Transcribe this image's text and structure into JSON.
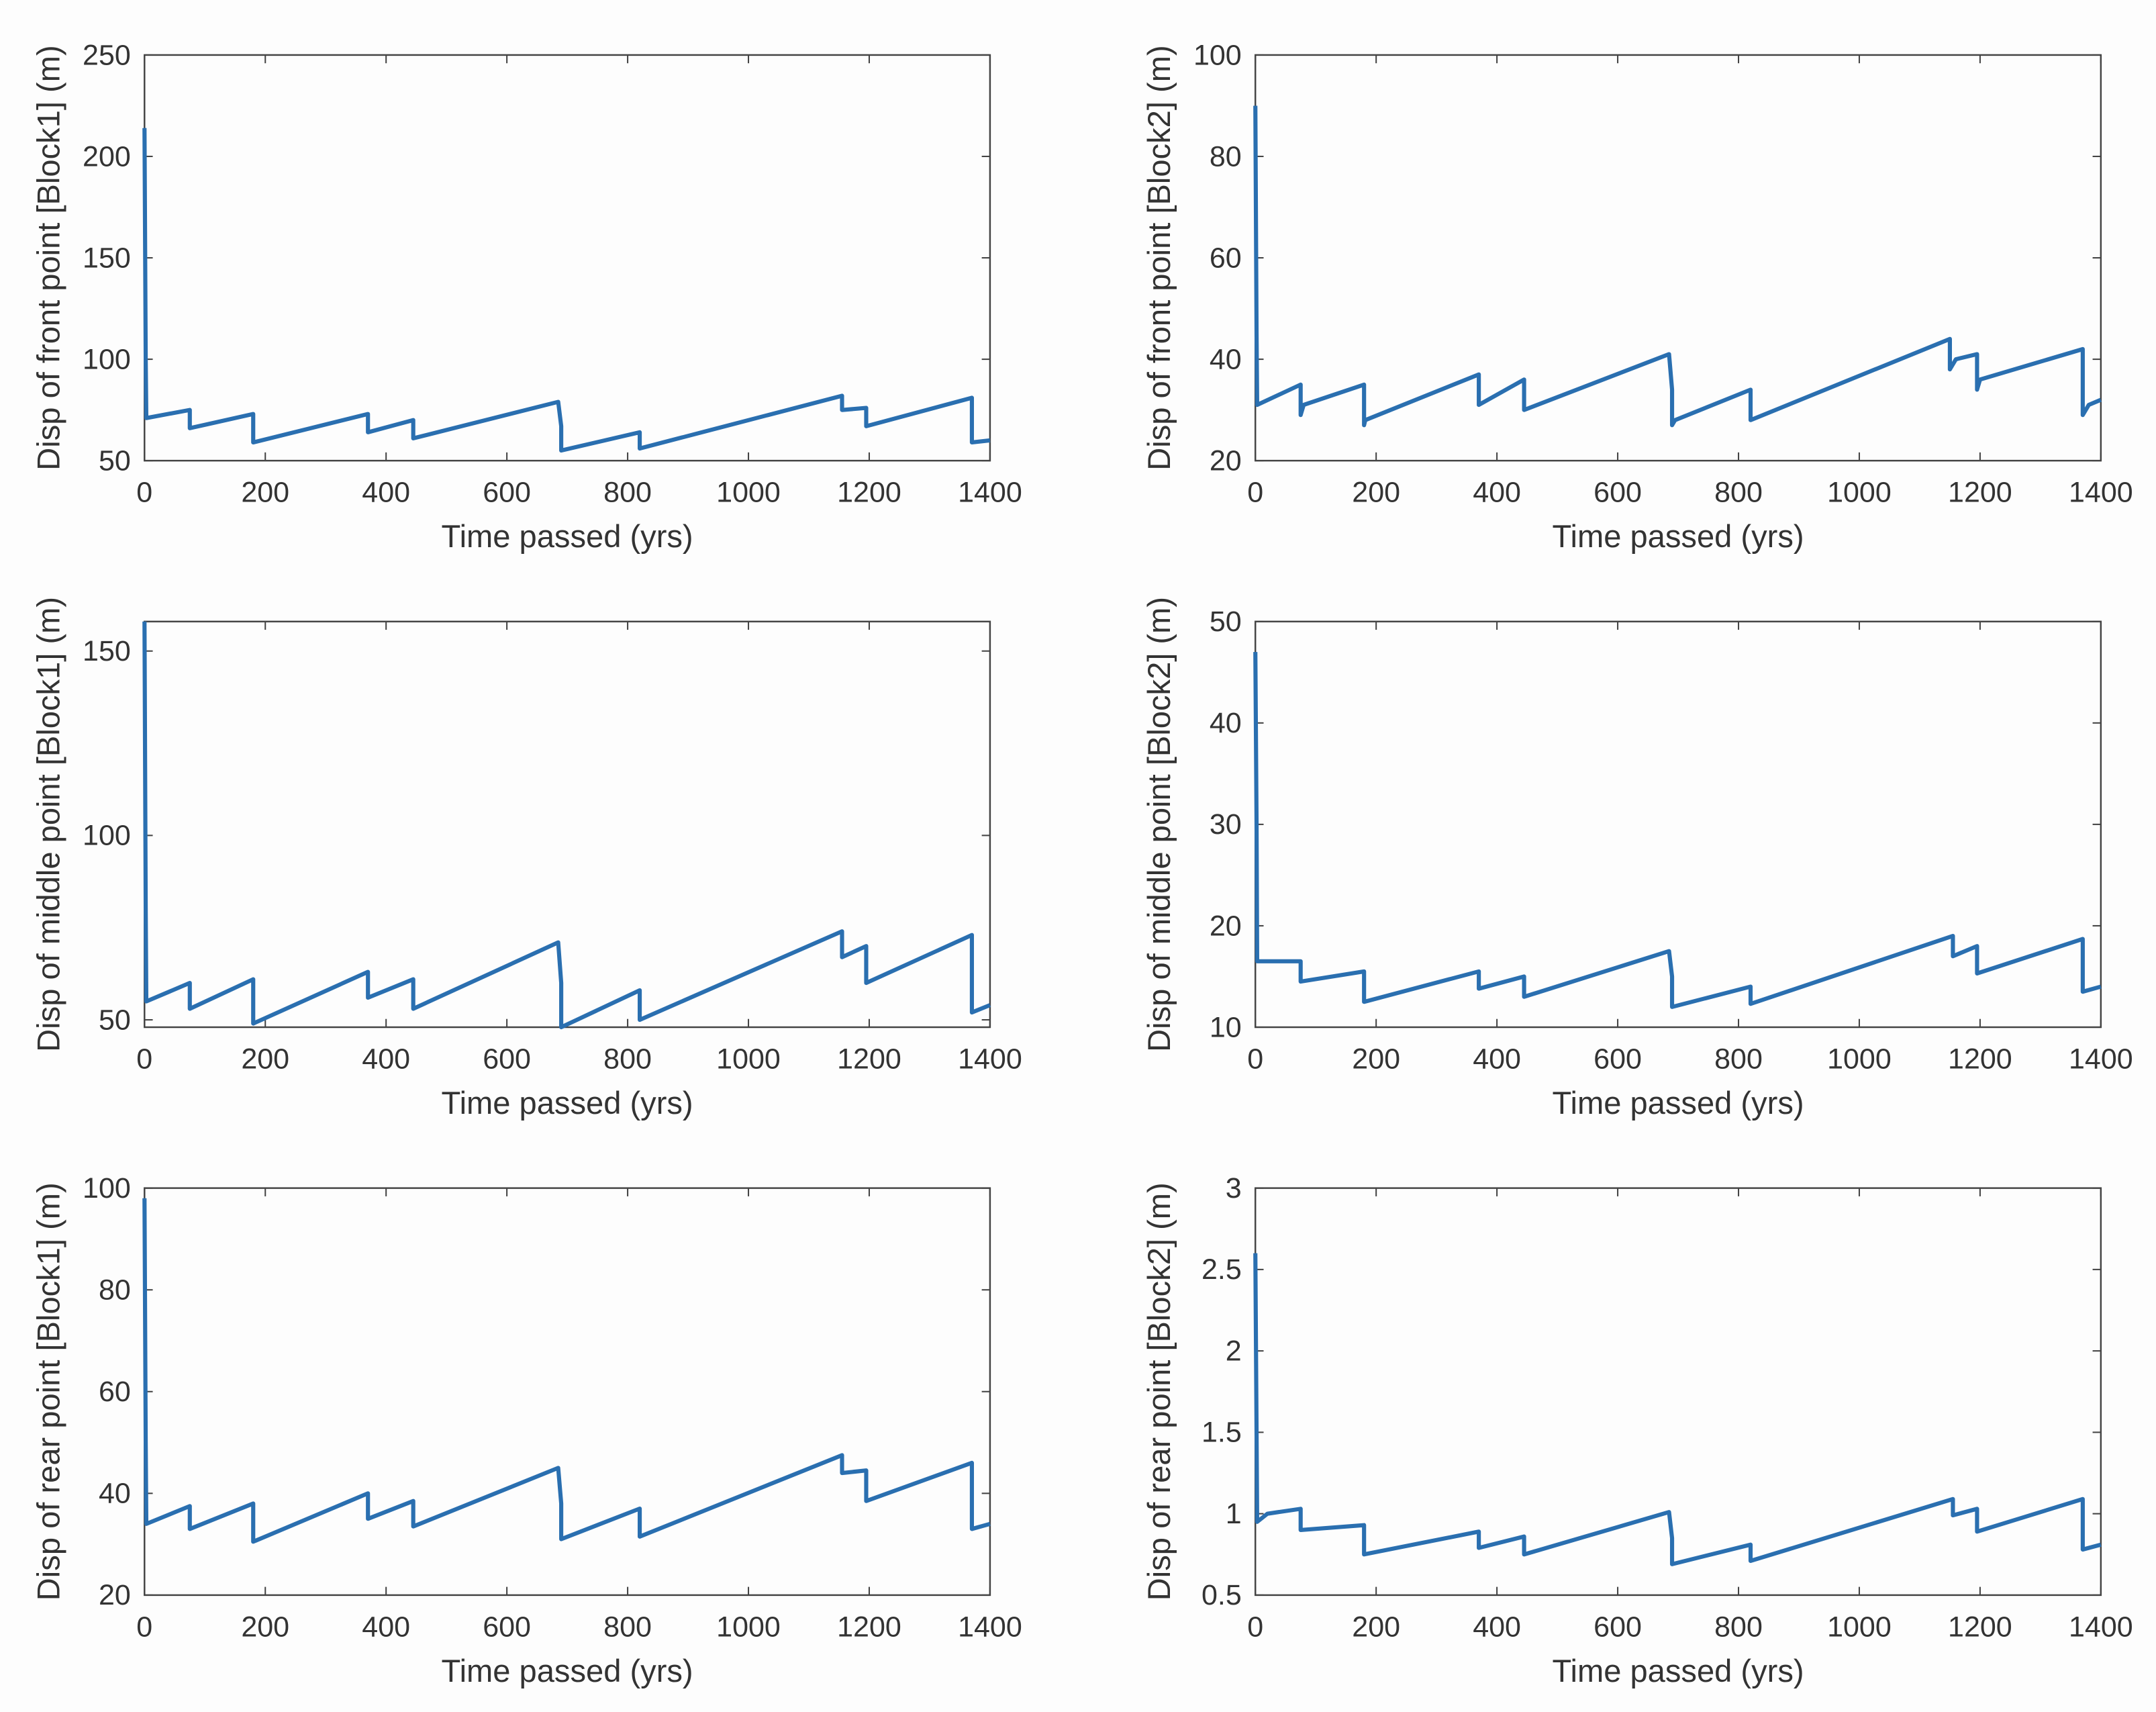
{
  "chart_data": [
    {
      "type": "line",
      "color": "#2a6fb0",
      "x_label": "Time passed (yrs)",
      "y_label": "Disp of front point [Block1] (m)",
      "xlim": [
        0,
        1400
      ],
      "xticks": [
        0,
        200,
        400,
        600,
        800,
        1000,
        1200,
        1400
      ],
      "ylim": [
        50,
        250
      ],
      "yticks": [
        50,
        100,
        150,
        200,
        250
      ],
      "x": [
        0,
        2,
        3,
        75,
        75,
        180,
        180,
        370,
        370,
        445,
        445,
        685,
        690,
        690,
        820,
        820,
        1155,
        1155,
        1195,
        1195,
        1370,
        1370,
        1400
      ],
      "values": [
        214,
        100,
        71,
        75,
        66,
        73,
        59,
        73,
        64,
        70,
        61,
        79,
        67,
        55,
        64,
        56,
        82,
        75,
        76,
        67,
        81,
        59,
        60
      ]
    },
    {
      "type": "line",
      "color": "#2a6fb0",
      "x_label": "Time passed (yrs)",
      "y_label": "Disp of front point [Block2] (m)",
      "xlim": [
        0,
        1400
      ],
      "xticks": [
        0,
        200,
        400,
        600,
        800,
        1000,
        1200,
        1400
      ],
      "ylim": [
        20,
        100
      ],
      "yticks": [
        20,
        40,
        60,
        80,
        100
      ],
      "x": [
        0,
        2,
        3,
        75,
        75,
        80,
        180,
        180,
        182,
        370,
        370,
        445,
        445,
        685,
        690,
        690,
        695,
        820,
        820,
        1150,
        1150,
        1160,
        1195,
        1195,
        1200,
        1370,
        1370,
        1380,
        1400
      ],
      "values": [
        90,
        45,
        31,
        35,
        29,
        31,
        35,
        27,
        28,
        37,
        31,
        36,
        30,
        41,
        34,
        27,
        28,
        34,
        28,
        44,
        38,
        40,
        41,
        34,
        36,
        42,
        29,
        31,
        32
      ]
    },
    {
      "type": "line",
      "color": "#2a6fb0",
      "x_label": "Time passed (yrs)",
      "y_label": "Disp of middle point [Block1] (m)",
      "xlim": [
        0,
        1400
      ],
      "xticks": [
        0,
        200,
        400,
        600,
        800,
        1000,
        1200,
        1400
      ],
      "ylim": [
        48,
        158
      ],
      "yticks": [
        50,
        100,
        150
      ],
      "x": [
        0,
        2,
        3,
        75,
        75,
        180,
        180,
        370,
        370,
        445,
        445,
        685,
        690,
        690,
        820,
        820,
        1155,
        1155,
        1195,
        1195,
        1370,
        1370,
        1400
      ],
      "values": [
        158,
        80,
        55,
        60,
        53,
        61,
        49,
        63,
        56,
        61,
        53,
        71,
        60,
        48,
        58,
        50,
        74,
        67,
        70,
        60,
        73,
        52,
        54
      ]
    },
    {
      "type": "line",
      "color": "#2a6fb0",
      "x_label": "Time passed (yrs)",
      "y_label": "Disp of middle point [Block2] (m)",
      "xlim": [
        0,
        1400
      ],
      "xticks": [
        0,
        200,
        400,
        600,
        800,
        1000,
        1200,
        1400
      ],
      "ylim": [
        10,
        50
      ],
      "yticks": [
        10,
        20,
        30,
        40,
        50
      ],
      "x": [
        0,
        2,
        3,
        75,
        75,
        180,
        180,
        370,
        370,
        445,
        445,
        685,
        690,
        690,
        820,
        820,
        1155,
        1155,
        1195,
        1195,
        1370,
        1370,
        1400
      ],
      "values": [
        47,
        30,
        16.5,
        16.5,
        14.5,
        15.5,
        12.5,
        15.5,
        13.8,
        15,
        13,
        17.5,
        15,
        12,
        14,
        12.3,
        19,
        17,
        18,
        15.3,
        18.7,
        13.5,
        14
      ]
    },
    {
      "type": "line",
      "color": "#2a6fb0",
      "x_label": "Time passed (yrs)",
      "y_label": "Disp of rear point [Block1] (m)",
      "xlim": [
        0,
        1400
      ],
      "xticks": [
        0,
        200,
        400,
        600,
        800,
        1000,
        1200,
        1400
      ],
      "ylim": [
        20,
        100
      ],
      "yticks": [
        20,
        40,
        60,
        80,
        100
      ],
      "x": [
        0,
        2,
        3,
        75,
        75,
        180,
        180,
        370,
        370,
        445,
        445,
        685,
        690,
        690,
        820,
        820,
        1155,
        1155,
        1195,
        1195,
        1370,
        1370,
        1400
      ],
      "values": [
        98,
        50,
        34,
        37.5,
        33,
        38,
        30.5,
        40,
        35,
        38.5,
        33.5,
        45,
        38,
        31,
        37,
        31.5,
        47.5,
        44,
        44.5,
        38.5,
        46,
        33,
        34
      ]
    },
    {
      "type": "line",
      "color": "#2a6fb0",
      "x_label": "Time passed (yrs)",
      "y_label": "Disp of rear point [Block2] (m)",
      "xlim": [
        0,
        1400
      ],
      "xticks": [
        0,
        200,
        400,
        600,
        800,
        1000,
        1200,
        1400
      ],
      "ylim": [
        0.5,
        3
      ],
      "yticks": [
        0.5,
        1,
        1.5,
        2,
        2.5,
        3
      ],
      "x": [
        0,
        2,
        3,
        20,
        75,
        75,
        180,
        180,
        370,
        370,
        445,
        445,
        685,
        690,
        690,
        820,
        820,
        1155,
        1155,
        1195,
        1195,
        1370,
        1370,
        1400
      ],
      "values": [
        2.6,
        1.5,
        0.95,
        1.0,
        1.03,
        0.9,
        0.93,
        0.75,
        0.89,
        0.79,
        0.86,
        0.75,
        1.01,
        0.85,
        0.69,
        0.81,
        0.71,
        1.09,
        0.99,
        1.03,
        0.89,
        1.09,
        0.78,
        0.81
      ]
    }
  ]
}
